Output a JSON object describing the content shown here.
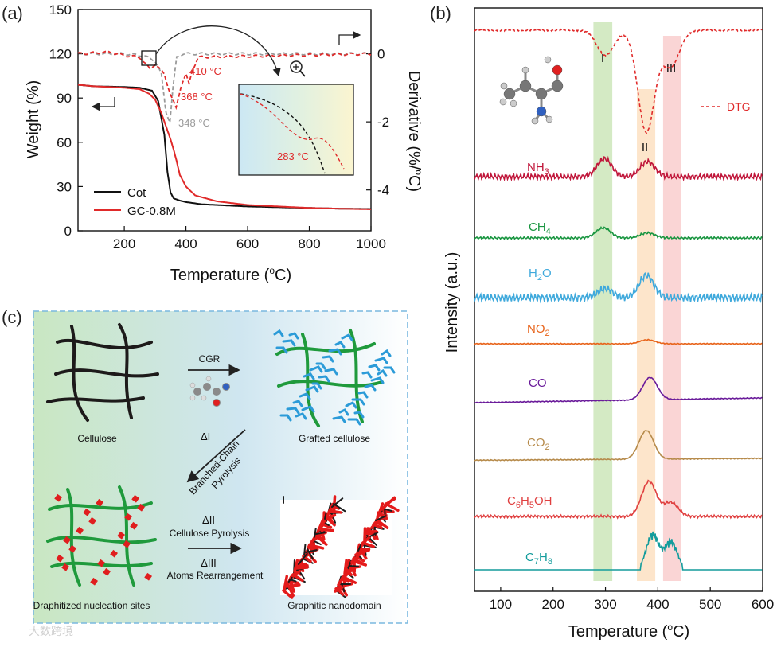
{
  "panel_a": {
    "label": "(a)",
    "x_title": "Temperature (°C)",
    "y_left_title": "Weight (%)",
    "y_right_title": "Derivative (%/°C)",
    "x_ticks": [
      "200",
      "400",
      "600",
      "800",
      "1000"
    ],
    "y_left_ticks": [
      "0",
      "30",
      "60",
      "90",
      "120",
      "150"
    ],
    "y_right_ticks": [
      "0",
      "-2",
      "-4"
    ],
    "legend": [
      "Cot",
      "GC-0.8M"
    ],
    "annotations": {
      "t410": "410 °C",
      "t368": "368 °C",
      "t348": "348 °C",
      "t283": "283 °C"
    }
  },
  "panel_b": {
    "label": "(b)",
    "x_title": "Temperature (°C)",
    "y_title": "Intensity (a.u.)",
    "x_ticks": [
      "100",
      "200",
      "300",
      "400",
      "500",
      "600"
    ],
    "regions": [
      "I",
      "II",
      "III"
    ],
    "dtg_label": "DTG",
    "gases": [
      {
        "name": "NH3",
        "base": "NH",
        "sub": "3",
        "color": "#c0163a"
      },
      {
        "name": "CH4",
        "base": "CH",
        "sub": "4",
        "color": "#1a9641"
      },
      {
        "name": "H2O",
        "base": "H",
        "sub": "2",
        "tail": "O",
        "color": "#3fa9dc"
      },
      {
        "name": "NO2",
        "base": "NO",
        "sub": "2",
        "color": "#e8641b"
      },
      {
        "name": "CO",
        "base": "CO",
        "color": "#6a1b9a"
      },
      {
        "name": "CO2",
        "base": "CO",
        "sub": "2",
        "color": "#b68a4a"
      },
      {
        "name": "C6H5OH",
        "color": "#e04040"
      },
      {
        "name": "C7H8",
        "color": "#139c9c"
      }
    ]
  },
  "panel_c": {
    "label": "(c)",
    "cellulose": "Cellulose",
    "grafted": "Grafted cellulose",
    "cgr": "CGR",
    "delta1": "ΔI",
    "branched_1": "Branched-Chain",
    "branched_2": "Pyrolysis",
    "delta2": "ΔII",
    "cellulose_pyrolysis": "Cellulose Pyrolysis",
    "delta3": "ΔIII",
    "atoms": "Atoms Rearrangement",
    "nucleation": "Draphitized nucleation sites",
    "graphitic": "Graphitic nanodomain"
  },
  "watermark": "大数跨境",
  "chart_data": [
    {
      "type": "line",
      "title": "",
      "xlabel": "Temperature (°C)",
      "ylabel": "Weight (%)",
      "y2label": "Derivative (%/°C)",
      "xlim": [
        50,
        1000
      ],
      "ylim": [
        0,
        150
      ],
      "y2lim": [
        -5.2,
        1.3
      ],
      "series": [
        {
          "name": "Cot",
          "axis": "left",
          "x": [
            50,
            100,
            200,
            250,
            290,
            310,
            330,
            340,
            350,
            360,
            380,
            400,
            450,
            500,
            600,
            700,
            800,
            900,
            1000
          ],
          "values": [
            99,
            98,
            97.5,
            97,
            95,
            88,
            65,
            40,
            26,
            22,
            20.5,
            19.5,
            18,
            17.5,
            16.5,
            16,
            15.5,
            15,
            14.8
          ]
        },
        {
          "name": "GC-0.8M",
          "axis": "left",
          "x": [
            50,
            100,
            200,
            250,
            280,
            300,
            320,
            340,
            350,
            360,
            370,
            380,
            400,
            430,
            500,
            600,
            700,
            800,
            900,
            1000
          ],
          "values": [
            99,
            98,
            97,
            96,
            93,
            89,
            80,
            68,
            62,
            55,
            47,
            38,
            30,
            24,
            20,
            17.5,
            16.5,
            15.5,
            15,
            14.6
          ]
        },
        {
          "name": "Cot DTG",
          "axis": "right",
          "x": [
            50,
            200,
            260,
            300,
            320,
            335,
            348,
            358,
            370,
            390,
            420,
            1000
          ],
          "values": [
            0,
            0,
            -0.05,
            -0.2,
            -0.6,
            -1.7,
            -2.0,
            -1.0,
            -0.1,
            0,
            0,
            0
          ]
        },
        {
          "name": "GC-0.8M DTG",
          "axis": "right",
          "x": [
            50,
            150,
            200,
            250,
            283,
            300,
            330,
            350,
            368,
            385,
            400,
            410,
            420,
            440,
            1000
          ],
          "values": [
            0,
            0.05,
            -0.05,
            -0.1,
            -0.45,
            -0.3,
            -0.6,
            -1.2,
            -1.6,
            -0.9,
            -0.6,
            -0.9,
            -0.5,
            -0.1,
            0
          ]
        }
      ]
    },
    {
      "type": "line",
      "title": "",
      "xlabel": "Temperature (°C)",
      "ylabel": "Intensity (a.u.)",
      "xlim": [
        50,
        600
      ],
      "regions": [
        {
          "name": "I",
          "from": 277,
          "to": 313
        },
        {
          "name": "II",
          "from": 360,
          "to": 395
        },
        {
          "name": "III",
          "from": 410,
          "to": 445
        }
      ],
      "series": [
        {
          "name": "DTG",
          "peaks": [
            {
              "x": 300,
              "h": 0.25
            },
            {
              "x": 378,
              "h": 1.0
            },
            {
              "x": 425,
              "h": 0.35
            }
          ]
        },
        {
          "name": "NH3",
          "peaks": [
            {
              "x": 298,
              "h": 0.9
            },
            {
              "x": 380,
              "h": 0.75
            }
          ]
        },
        {
          "name": "CH4",
          "peaks": [
            {
              "x": 296,
              "h": 0.7
            },
            {
              "x": 380,
              "h": 0.35
            }
          ]
        },
        {
          "name": "H2O",
          "peaks": [
            {
              "x": 300,
              "h": 0.4
            },
            {
              "x": 378,
              "h": 1.0
            }
          ]
        },
        {
          "name": "NO2",
          "peaks": [
            {
              "x": 380,
              "h": 0.5
            }
          ]
        },
        {
          "name": "CO",
          "peaks": [
            {
              "x": 385,
              "h": 1.0
            }
          ]
        },
        {
          "name": "CO2",
          "peaks": [
            {
              "x": 378,
              "h": 1.0
            }
          ]
        },
        {
          "name": "C6H5OH",
          "peaks": [
            {
              "x": 383,
              "h": 1.0
            },
            {
              "x": 425,
              "h": 0.4
            }
          ]
        },
        {
          "name": "C7H8",
          "peaks": [
            {
              "x": 390,
              "h": 1.0
            },
            {
              "x": 425,
              "h": 0.8
            }
          ]
        }
      ]
    }
  ]
}
